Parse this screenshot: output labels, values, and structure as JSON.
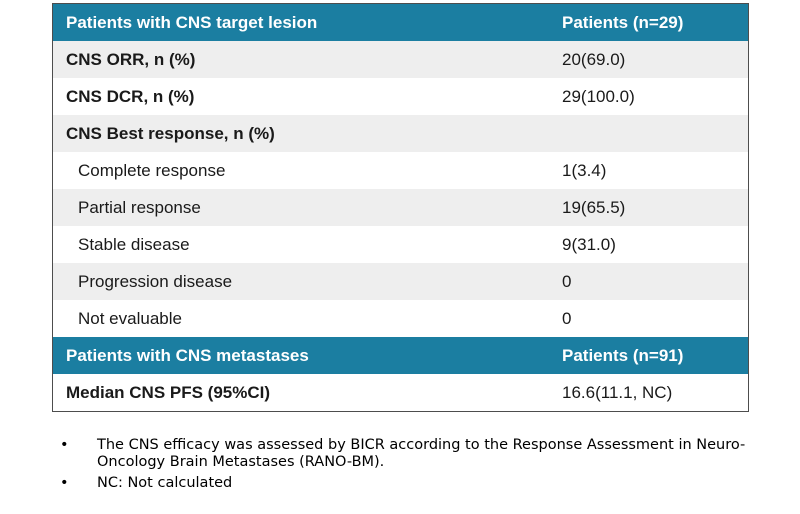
{
  "table": {
    "header1": {
      "label": "Patients with CNS target lesion",
      "value": "Patients (n=29)"
    },
    "rows": [
      {
        "label": "CNS ORR, n (%)",
        "value": "20(69.0)"
      },
      {
        "label": "CNS DCR, n (%)",
        "value": "29(100.0)"
      },
      {
        "label": "CNS Best response, n (%)",
        "value": ""
      },
      {
        "label": "Complete response",
        "value": "1(3.4)"
      },
      {
        "label": "Partial response",
        "value": "19(65.5)"
      },
      {
        "label": "Stable disease",
        "value": "9(31.0)"
      },
      {
        "label": "Progression disease",
        "value": "0"
      },
      {
        "label": "Not evaluable",
        "value": "0"
      }
    ],
    "header2": {
      "label": "Patients with CNS metastases",
      "value": "Patients (n=91)"
    },
    "pfs": {
      "label": "Median CNS PFS (95%CI)",
      "value": "16.6(11.1, NC)"
    }
  },
  "notes": {
    "bullet": "•",
    "items": [
      "The CNS efficacy was assessed by BICR according to the Response Assessment in Neuro-Oncology Brain Metastases (RANO-BM).",
      "NC: Not calculated"
    ]
  },
  "colors": {
    "header": "#1b7ea1",
    "shade": "#eeeeee"
  }
}
